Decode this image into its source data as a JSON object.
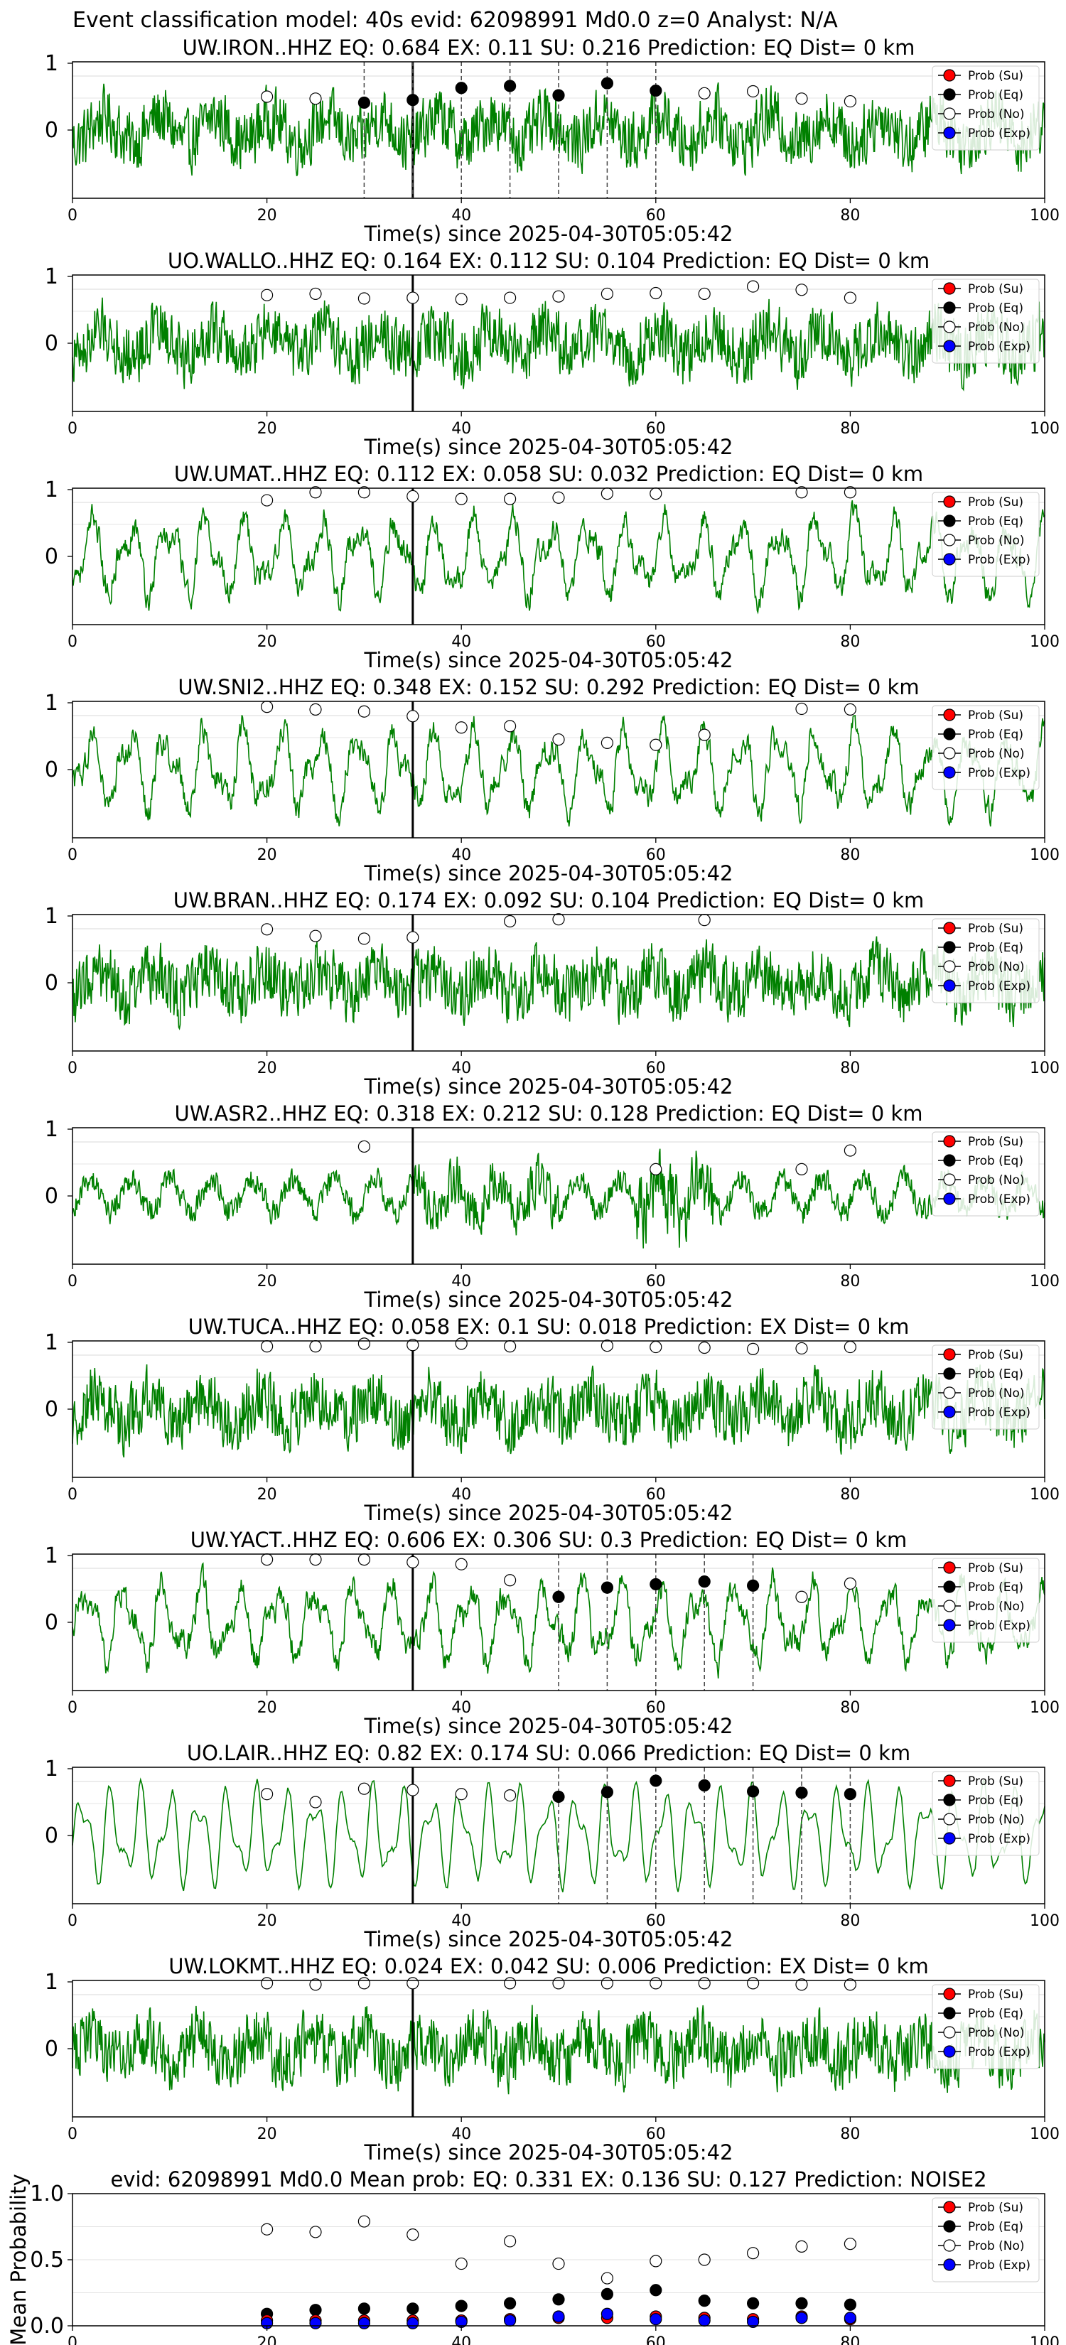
{
  "suptitle": "Event classification model: 40s evid: 62098991 Md0.0 z=0 Analyst: N/A",
  "chart_data": {
    "type": "line",
    "xlim": [
      0,
      100
    ],
    "xticks": [
      0,
      20,
      40,
      60,
      80,
      100
    ],
    "xlabel": "Time(s) since 2025-04-30T05:05:42",
    "pick_time": 35,
    "waveform_color": "#008000",
    "legend": [
      "Prob (Su)",
      "Prob (Eq)",
      "Prob (No)",
      "Prob (Exp)"
    ],
    "legend_colors": [
      "#ff0000",
      "#000000",
      "#ffffff",
      "#0000ff"
    ],
    "prob_times": [
      20,
      25,
      30,
      35,
      40,
      45,
      50,
      55,
      60,
      65,
      70,
      75,
      80
    ],
    "panels": [
      {
        "title": "UW.IRON..HHZ   EQ: 0.684  EX: 0.11  SU: 0.216   Prediction: EQ    Dist= 0 km",
        "style": "noisy",
        "yticks": [
          "1",
          "0"
        ],
        "points": [
          {
            "t": 20,
            "p": 0.5,
            "cls": "No"
          },
          {
            "t": 25,
            "p": 0.47,
            "cls": "No"
          },
          {
            "t": 30,
            "p": 0.41,
            "cls": "Eq"
          },
          {
            "t": 35,
            "p": 0.45,
            "cls": "Eq"
          },
          {
            "t": 40,
            "p": 0.63,
            "cls": "Eq"
          },
          {
            "t": 45,
            "p": 0.66,
            "cls": "Eq"
          },
          {
            "t": 50,
            "p": 0.52,
            "cls": "Eq"
          },
          {
            "t": 55,
            "p": 0.7,
            "cls": "Eq"
          },
          {
            "t": 60,
            "p": 0.59,
            "cls": "Eq"
          },
          {
            "t": 65,
            "p": 0.55,
            "cls": "No"
          },
          {
            "t": 70,
            "p": 0.58,
            "cls": "No"
          },
          {
            "t": 75,
            "p": 0.47,
            "cls": "No"
          },
          {
            "t": 80,
            "p": 0.43,
            "cls": "No"
          }
        ]
      },
      {
        "title": "UO.WALLO..HHZ   EQ: 0.164  EX: 0.112  SU: 0.104   Prediction: EQ    Dist= 0 km",
        "style": "noisy",
        "yticks": [
          "1",
          "0"
        ],
        "points": [
          {
            "t": 20,
            "p": 0.72,
            "cls": "No"
          },
          {
            "t": 25,
            "p": 0.74,
            "cls": "No"
          },
          {
            "t": 30,
            "p": 0.67,
            "cls": "No"
          },
          {
            "t": 35,
            "p": 0.68,
            "cls": "No"
          },
          {
            "t": 40,
            "p": 0.66,
            "cls": "No"
          },
          {
            "t": 45,
            "p": 0.68,
            "cls": "No"
          },
          {
            "t": 50,
            "p": 0.7,
            "cls": "No"
          },
          {
            "t": 55,
            "p": 0.74,
            "cls": "No"
          },
          {
            "t": 60,
            "p": 0.75,
            "cls": "No"
          },
          {
            "t": 65,
            "p": 0.74,
            "cls": "No"
          },
          {
            "t": 70,
            "p": 0.85,
            "cls": "No"
          },
          {
            "t": 75,
            "p": 0.8,
            "cls": "No"
          },
          {
            "t": 80,
            "p": 0.68,
            "cls": "No"
          }
        ]
      },
      {
        "title": "UW.UMAT..HHZ   EQ: 0.112  EX: 0.058  SU: 0.032   Prediction: EQ    Dist= 0 km",
        "style": "oscillating",
        "yticks": [
          "1",
          "0"
        ],
        "points": [
          {
            "t": 20,
            "p": 0.84,
            "cls": "No"
          },
          {
            "t": 25,
            "p": 0.96,
            "cls": "No"
          },
          {
            "t": 30,
            "p": 0.96,
            "cls": "No"
          },
          {
            "t": 35,
            "p": 0.9,
            "cls": "No"
          },
          {
            "t": 40,
            "p": 0.86,
            "cls": "No"
          },
          {
            "t": 45,
            "p": 0.86,
            "cls": "No"
          },
          {
            "t": 50,
            "p": 0.88,
            "cls": "No"
          },
          {
            "t": 55,
            "p": 0.94,
            "cls": "No"
          },
          {
            "t": 60,
            "p": 0.94,
            "cls": "No"
          },
          {
            "t": 75,
            "p": 0.96,
            "cls": "No"
          },
          {
            "t": 80,
            "p": 0.96,
            "cls": "No"
          }
        ]
      },
      {
        "title": "UW.SNI2..HHZ   EQ: 0.348  EX: 0.152  SU: 0.292   Prediction: EQ    Dist= 0 km",
        "style": "oscillating",
        "yticks": [
          "1",
          "0"
        ],
        "points": [
          {
            "t": 20,
            "p": 0.94,
            "cls": "No"
          },
          {
            "t": 25,
            "p": 0.9,
            "cls": "No"
          },
          {
            "t": 30,
            "p": 0.87,
            "cls": "No"
          },
          {
            "t": 35,
            "p": 0.8,
            "cls": "No"
          },
          {
            "t": 40,
            "p": 0.63,
            "cls": "No"
          },
          {
            "t": 45,
            "p": 0.65,
            "cls": "No"
          },
          {
            "t": 50,
            "p": 0.45,
            "cls": "No"
          },
          {
            "t": 55,
            "p": 0.4,
            "cls": "No"
          },
          {
            "t": 60,
            "p": 0.37,
            "cls": "No"
          },
          {
            "t": 65,
            "p": 0.52,
            "cls": "No"
          },
          {
            "t": 75,
            "p": 0.91,
            "cls": "No"
          },
          {
            "t": 80,
            "p": 0.9,
            "cls": "No"
          }
        ]
      },
      {
        "title": "UW.BRAN..HHZ   EQ: 0.174  EX: 0.092  SU: 0.104   Prediction: EQ    Dist= 0 km",
        "style": "noisy",
        "yticks": [
          "1",
          "0"
        ],
        "points": [
          {
            "t": 20,
            "p": 0.8,
            "cls": "No"
          },
          {
            "t": 25,
            "p": 0.7,
            "cls": "No"
          },
          {
            "t": 30,
            "p": 0.66,
            "cls": "No"
          },
          {
            "t": 35,
            "p": 0.68,
            "cls": "No"
          },
          {
            "t": 45,
            "p": 0.92,
            "cls": "No"
          },
          {
            "t": 50,
            "p": 0.95,
            "cls": "No"
          },
          {
            "t": 65,
            "p": 0.94,
            "cls": "No"
          }
        ]
      },
      {
        "title": "UW.ASR2..HHZ   EQ: 0.318  EX: 0.212  SU: 0.128   Prediction: EQ    Dist= 0 km",
        "style": "burst",
        "yticks": [
          "1",
          "0"
        ],
        "points": [
          {
            "t": 30,
            "p": 0.74,
            "cls": "No"
          },
          {
            "t": 60,
            "p": 0.4,
            "cls": "No"
          },
          {
            "t": 75,
            "p": 0.4,
            "cls": "No"
          },
          {
            "t": 80,
            "p": 0.68,
            "cls": "No"
          }
        ]
      },
      {
        "title": "UW.TUCA..HHZ   EQ: 0.058  EX: 0.1  SU: 0.018   Prediction: EX    Dist= 0 km",
        "style": "noisy",
        "yticks": [
          "1",
          "0"
        ],
        "points": [
          {
            "t": 20,
            "p": 0.94,
            "cls": "No"
          },
          {
            "t": 25,
            "p": 0.94,
            "cls": "No"
          },
          {
            "t": 30,
            "p": 0.98,
            "cls": "No"
          },
          {
            "t": 35,
            "p": 0.96,
            "cls": "No"
          },
          {
            "t": 40,
            "p": 0.98,
            "cls": "No"
          },
          {
            "t": 45,
            "p": 0.94,
            "cls": "No"
          },
          {
            "t": 55,
            "p": 0.95,
            "cls": "No"
          },
          {
            "t": 60,
            "p": 0.93,
            "cls": "No"
          },
          {
            "t": 65,
            "p": 0.92,
            "cls": "No"
          },
          {
            "t": 70,
            "p": 0.9,
            "cls": "No"
          },
          {
            "t": 75,
            "p": 0.91,
            "cls": "No"
          },
          {
            "t": 80,
            "p": 0.93,
            "cls": "No"
          }
        ]
      },
      {
        "title": "UW.YACT..HHZ   EQ: 0.606  EX: 0.306  SU: 0.3   Prediction: EQ    Dist= 0 km",
        "style": "oscillating",
        "yticks": [
          "1",
          "0"
        ],
        "points": [
          {
            "t": 20,
            "p": 0.94,
            "cls": "No"
          },
          {
            "t": 25,
            "p": 0.94,
            "cls": "No"
          },
          {
            "t": 30,
            "p": 0.94,
            "cls": "No"
          },
          {
            "t": 35,
            "p": 0.9,
            "cls": "No"
          },
          {
            "t": 40,
            "p": 0.87,
            "cls": "No"
          },
          {
            "t": 45,
            "p": 0.63,
            "cls": "No"
          },
          {
            "t": 50,
            "p": 0.38,
            "cls": "Eq"
          },
          {
            "t": 55,
            "p": 0.52,
            "cls": "Eq"
          },
          {
            "t": 60,
            "p": 0.57,
            "cls": "Eq"
          },
          {
            "t": 65,
            "p": 0.61,
            "cls": "Eq"
          },
          {
            "t": 70,
            "p": 0.55,
            "cls": "Eq"
          },
          {
            "t": 75,
            "p": 0.38,
            "cls": "No"
          },
          {
            "t": 80,
            "p": 0.58,
            "cls": "No"
          }
        ]
      },
      {
        "title": "UO.LAIR..HHZ   EQ: 0.82  EX: 0.174  SU: 0.066   Prediction: EQ    Dist= 0 km",
        "style": "smooth",
        "yticks": [
          "1",
          "0"
        ],
        "points": [
          {
            "t": 20,
            "p": 0.62,
            "cls": "No"
          },
          {
            "t": 25,
            "p": 0.5,
            "cls": "No"
          },
          {
            "t": 30,
            "p": 0.7,
            "cls": "No"
          },
          {
            "t": 35,
            "p": 0.68,
            "cls": "No"
          },
          {
            "t": 40,
            "p": 0.62,
            "cls": "No"
          },
          {
            "t": 45,
            "p": 0.6,
            "cls": "No"
          },
          {
            "t": 50,
            "p": 0.58,
            "cls": "Eq"
          },
          {
            "t": 55,
            "p": 0.65,
            "cls": "Eq"
          },
          {
            "t": 60,
            "p": 0.82,
            "cls": "Eq"
          },
          {
            "t": 65,
            "p": 0.75,
            "cls": "Eq"
          },
          {
            "t": 70,
            "p": 0.66,
            "cls": "Eq"
          },
          {
            "t": 75,
            "p": 0.64,
            "cls": "Eq"
          },
          {
            "t": 80,
            "p": 0.62,
            "cls": "Eq"
          }
        ]
      },
      {
        "title": "UW.LOKMT..HHZ   EQ: 0.024  EX: 0.042  SU: 0.006   Prediction: EX    Dist= 0 km",
        "style": "noisy",
        "yticks": [
          "1",
          "0"
        ],
        "points": [
          {
            "t": 20,
            "p": 0.98,
            "cls": "No"
          },
          {
            "t": 25,
            "p": 0.96,
            "cls": "No"
          },
          {
            "t": 30,
            "p": 0.98,
            "cls": "No"
          },
          {
            "t": 35,
            "p": 0.98,
            "cls": "No"
          },
          {
            "t": 45,
            "p": 0.98,
            "cls": "No"
          },
          {
            "t": 50,
            "p": 0.98,
            "cls": "No"
          },
          {
            "t": 55,
            "p": 0.98,
            "cls": "No"
          },
          {
            "t": 60,
            "p": 0.98,
            "cls": "No"
          },
          {
            "t": 65,
            "p": 0.98,
            "cls": "No"
          },
          {
            "t": 70,
            "p": 0.98,
            "cls": "No"
          },
          {
            "t": 75,
            "p": 0.96,
            "cls": "No"
          },
          {
            "t": 80,
            "p": 0.96,
            "cls": "No"
          }
        ]
      }
    ],
    "summary": {
      "title": "evid: 62098991  Md0.0   Mean prob:   EQ: 0.331  EX: 0.136  SU: 0.127   Prediction: NOISE2",
      "ylabel": "Mean Probability",
      "ylim": [
        0,
        1
      ],
      "yticks": [
        "0.0",
        "0.5",
        "1.0"
      ],
      "series": [
        {
          "name": "Prob (No)",
          "values": [
            0.73,
            0.71,
            0.79,
            0.69,
            0.47,
            0.64,
            0.47,
            0.36,
            0.49,
            0.5,
            0.55,
            0.6,
            0.62
          ]
        },
        {
          "name": "Prob (Eq)",
          "values": [
            0.09,
            0.12,
            0.13,
            0.13,
            0.15,
            0.17,
            0.2,
            0.24,
            0.27,
            0.19,
            0.17,
            0.17,
            0.16
          ]
        },
        {
          "name": "Prob (Su)",
          "values": [
            0.04,
            0.04,
            0.04,
            0.04,
            0.04,
            0.05,
            0.06,
            0.06,
            0.07,
            0.06,
            0.05,
            0.07,
            0.05
          ]
        },
        {
          "name": "Prob (Exp)",
          "values": [
            0.02,
            0.02,
            0.02,
            0.02,
            0.03,
            0.04,
            0.07,
            0.09,
            0.05,
            0.04,
            0.03,
            0.06,
            0.06
          ]
        }
      ]
    }
  }
}
